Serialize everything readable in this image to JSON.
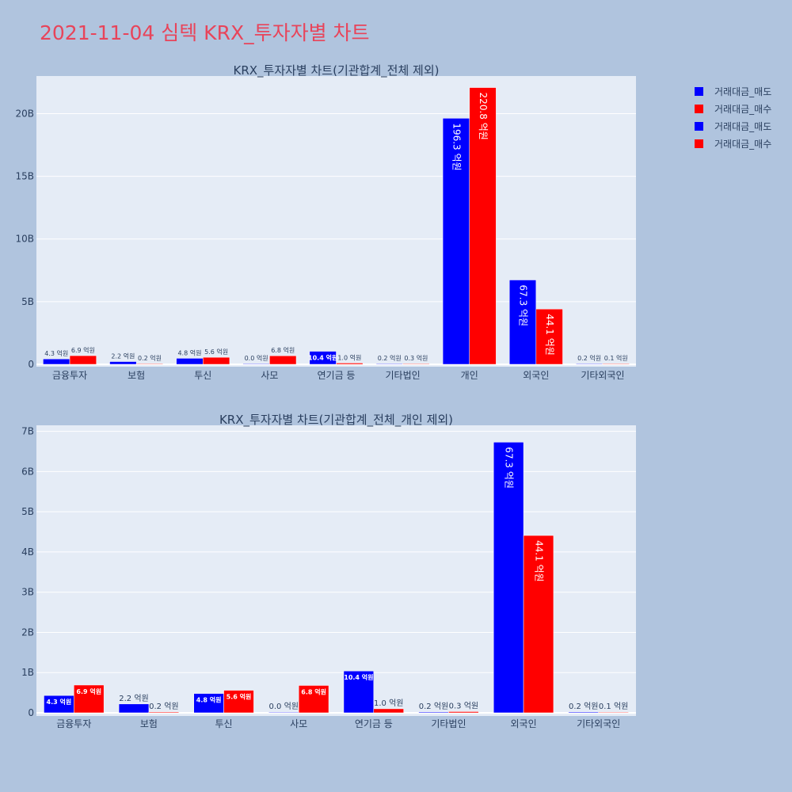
{
  "page_title": "2021-11-04 심텍 KRX_투자자별 차트",
  "colors": {
    "sell": "#0000ff",
    "buy": "#ff0000",
    "plot_bg": "#e5ecf6",
    "page_bg": "#b0c4de",
    "title": "#e8445a"
  },
  "legend": [
    {
      "label": "거래대금_매도",
      "color": "#0000ff"
    },
    {
      "label": "거래대금_매수",
      "color": "#ff0000"
    },
    {
      "label": "거래대금_매도",
      "color": "#0000ff"
    },
    {
      "label": "거래대금_매수",
      "color": "#ff0000"
    }
  ],
  "chart_data": [
    {
      "type": "bar",
      "title": "KRX_투자자별 차트(기관합계_전체 제외)",
      "categories": [
        "금융투자",
        "보험",
        "투신",
        "사모",
        "연기금 등",
        "기타법인",
        "개인",
        "외국인",
        "기타외국인"
      ],
      "ylim": [
        0,
        23
      ],
      "yticks": [
        0,
        5,
        10,
        15,
        20
      ],
      "ytick_labels": [
        "0",
        "5B",
        "10B",
        "15B",
        "20B"
      ],
      "grid": true,
      "legend_position": "top-right",
      "series": [
        {
          "name": "거래대금_매도",
          "color": "#0000ff",
          "values": [
            0.43,
            0.22,
            0.48,
            0.0,
            1.04,
            0.02,
            19.63,
            6.73,
            0.02
          ],
          "labels": [
            "4.3 억원",
            "2.2 억원",
            "4.8 억원",
            "0.0 억원",
            "10.4 억원",
            "0.2 억원",
            "196.3 억원",
            "67.3 억원",
            "0.2 억원"
          ]
        },
        {
          "name": "거래대금_매수",
          "color": "#ff0000",
          "values": [
            0.69,
            0.02,
            0.56,
            0.68,
            0.1,
            0.03,
            22.08,
            4.41,
            0.01
          ],
          "labels": [
            "6.9 억원",
            "0.2 억원",
            "5.6 억원",
            "6.8 억원",
            "1.0 억원",
            "0.3 억원",
            "220.8 억원",
            "44.1 억원",
            "0.1 억원"
          ]
        }
      ]
    },
    {
      "type": "bar",
      "title": "KRX_투자자별 차트(기관합계_전체_개인 제외)",
      "categories": [
        "금융투자",
        "보험",
        "투신",
        "사모",
        "연기금 등",
        "기타법인",
        "외국인",
        "기타외국인"
      ],
      "ylim": [
        0,
        7.15
      ],
      "yticks": [
        0,
        1,
        2,
        3,
        4,
        5,
        6,
        7
      ],
      "ytick_labels": [
        "0",
        "1B",
        "2B",
        "3B",
        "4B",
        "5B",
        "6B",
        "7B"
      ],
      "grid": true,
      "series": [
        {
          "name": "거래대금_매도",
          "color": "#0000ff",
          "values": [
            0.43,
            0.22,
            0.48,
            0.0,
            1.04,
            0.02,
            6.73,
            0.02
          ],
          "labels": [
            "4.3 억원",
            "2.2 억원",
            "4.8 억원",
            "0.0 억원",
            "10.4 억원",
            "0.2 억원",
            "67.3 억원",
            "0.2 억원"
          ]
        },
        {
          "name": "거래대금_매수",
          "color": "#ff0000",
          "values": [
            0.69,
            0.02,
            0.56,
            0.68,
            0.1,
            0.03,
            4.41,
            0.01
          ],
          "labels": [
            "6.9 억원",
            "0.2 억원",
            "5.6 억원",
            "6.8 억원",
            "1.0 억원",
            "0.3 억원",
            "44.1 억원",
            "0.1 억원"
          ]
        }
      ]
    }
  ]
}
